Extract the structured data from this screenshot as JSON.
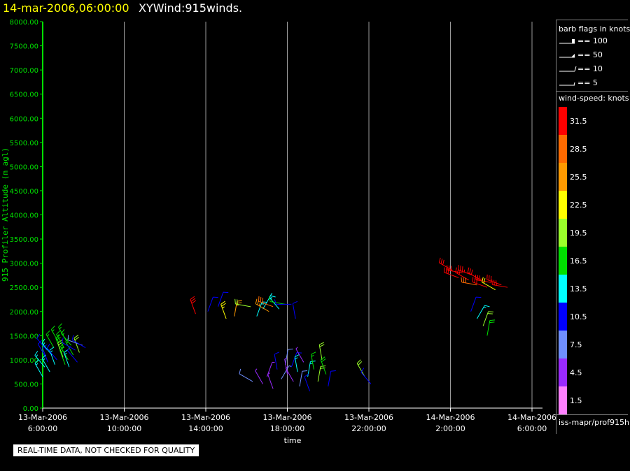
{
  "header": {
    "datetime": "14-mar-2006,06:00:00",
    "title": "XYWind:915winds."
  },
  "legend": {
    "barb_title": "barb flags in knots",
    "barbs": [
      {
        "label": "== 100"
      },
      {
        "label": "== 50"
      },
      {
        "label": "== 10"
      },
      {
        "label": "== 5"
      }
    ],
    "speed_title": "wind-speed: knots",
    "speed_bins": [
      {
        "label": "31.5",
        "color": "#ff0000"
      },
      {
        "label": "28.5",
        "color": "#ff6a00"
      },
      {
        "label": "25.5",
        "color": "#ff9a00"
      },
      {
        "label": "22.5",
        "color": "#ffff00"
      },
      {
        "label": "19.5",
        "color": "#9aff2a"
      },
      {
        "label": "16.5",
        "color": "#00e000"
      },
      {
        "label": "13.5",
        "color": "#00ffff"
      },
      {
        "label": "10.5",
        "color": "#0000ff"
      },
      {
        "label": "7.5",
        "color": "#6f8fff"
      },
      {
        "label": "4.5",
        "color": "#9a2aff"
      },
      {
        "label": "1.5",
        "color": "#ff80ff"
      }
    ],
    "source": "iss-mapr/prof915h"
  },
  "footer": {
    "quality_note": "REAL-TIME DATA, NOT CHECKED FOR QUALITY"
  },
  "chart_data": {
    "type": "scatter",
    "title": "XYWind:915winds.",
    "xlabel": "time",
    "ylabel": "915 Profiler Altitude (m agl)",
    "ylim": [
      0,
      8000
    ],
    "xlim": [
      "13-Mar-2006 6:00:00",
      "14-Mar-2006 6:00:00"
    ],
    "y_ticks": [
      "0.00",
      "500.00",
      "1000.00",
      "1500.00",
      "2000.00",
      "2500.00",
      "3000.00",
      "3500.00",
      "4000.00",
      "4500.00",
      "5000.00",
      "5500.00",
      "6000.00",
      "6500.00",
      "7000.00",
      "7500.00",
      "8000.00"
    ],
    "x_ticks": [
      {
        "date": "13-Mar-2006",
        "time": "6:00:00"
      },
      {
        "date": "13-Mar-2006",
        "time": "10:00:00"
      },
      {
        "date": "13-Mar-2006",
        "time": "14:00:00"
      },
      {
        "date": "13-Mar-2006",
        "time": "18:00:00"
      },
      {
        "date": "13-Mar-2006",
        "time": "22:00:00"
      },
      {
        "date": "14-Mar-2006",
        "time": "2:00:00"
      },
      {
        "date": "14-Mar-2006",
        "time": "6:00:00"
      }
    ],
    "vertical_grid": true,
    "series_note_units": {
      "x": "hours after 13-Mar-2006 6:00:00",
      "y": "m agl",
      "speed": "knots",
      "dir": "degrees"
    },
    "barbs": [
      {
        "x": 0.0,
        "y": 650,
        "speed": 13,
        "dir": 330
      },
      {
        "x": 0.1,
        "y": 850,
        "speed": 13,
        "dir": 320
      },
      {
        "x": 0.15,
        "y": 1050,
        "speed": 12,
        "dir": 330
      },
      {
        "x": 0.2,
        "y": 1200,
        "speed": 10,
        "dir": 320
      },
      {
        "x": 0.25,
        "y": 950,
        "speed": 12,
        "dir": 340
      },
      {
        "x": 0.35,
        "y": 750,
        "speed": 14,
        "dir": 330
      },
      {
        "x": 0.45,
        "y": 1100,
        "speed": 13,
        "dir": 320
      },
      {
        "x": 0.55,
        "y": 1250,
        "speed": 16,
        "dir": 330
      },
      {
        "x": 0.6,
        "y": 900,
        "speed": 13,
        "dir": 340
      },
      {
        "x": 0.7,
        "y": 1000,
        "speed": 12,
        "dir": 320
      },
      {
        "x": 0.8,
        "y": 1350,
        "speed": 16,
        "dir": 330
      },
      {
        "x": 0.9,
        "y": 1150,
        "speed": 18,
        "dir": 340
      },
      {
        "x": 1.0,
        "y": 1050,
        "speed": 19,
        "dir": 340
      },
      {
        "x": 1.05,
        "y": 1250,
        "speed": 17,
        "dir": 330
      },
      {
        "x": 1.1,
        "y": 900,
        "speed": 17,
        "dir": 340
      },
      {
        "x": 1.15,
        "y": 1400,
        "speed": 16,
        "dir": 330
      },
      {
        "x": 1.25,
        "y": 1000,
        "speed": 17,
        "dir": 330
      },
      {
        "x": 1.3,
        "y": 850,
        "speed": 14,
        "dir": 340
      },
      {
        "x": 1.4,
        "y": 1300,
        "speed": 16,
        "dir": 320
      },
      {
        "x": 1.5,
        "y": 1100,
        "speed": 17,
        "dir": 330
      },
      {
        "x": 1.6,
        "y": 1200,
        "speed": 10,
        "dir": 300
      },
      {
        "x": 1.7,
        "y": 950,
        "speed": 12,
        "dir": 320
      },
      {
        "x": 1.8,
        "y": 1150,
        "speed": 19,
        "dir": 340
      },
      {
        "x": 1.95,
        "y": 1300,
        "speed": 9,
        "dir": 290
      },
      {
        "x": 2.1,
        "y": 1250,
        "speed": 11,
        "dir": 300
      },
      {
        "x": 7.5,
        "y": 1950,
        "speed": 31,
        "dir": 340
      },
      {
        "x": 8.1,
        "y": 2000,
        "speed": 10,
        "dir": 20
      },
      {
        "x": 8.6,
        "y": 2100,
        "speed": 10,
        "dir": 20
      },
      {
        "x": 9.0,
        "y": 1850,
        "speed": 23,
        "dir": 340
      },
      {
        "x": 9.4,
        "y": 1900,
        "speed": 27,
        "dir": 10
      },
      {
        "x": 10.2,
        "y": 2100,
        "speed": 20,
        "dir": 280
      },
      {
        "x": 10.5,
        "y": 1900,
        "speed": 13,
        "dir": 20
      },
      {
        "x": 10.8,
        "y": 2050,
        "speed": 13,
        "dir": 30
      },
      {
        "x": 11.1,
        "y": 2000,
        "speed": 27,
        "dir": 300
      },
      {
        "x": 11.3,
        "y": 2100,
        "speed": 29,
        "dir": 290
      },
      {
        "x": 11.6,
        "y": 2050,
        "speed": 13,
        "dir": 320
      },
      {
        "x": 11.9,
        "y": 2150,
        "speed": 16,
        "dir": 280
      },
      {
        "x": 12.2,
        "y": 2150,
        "speed": 11,
        "dir": 270
      },
      {
        "x": 12.4,
        "y": 1850,
        "speed": 11,
        "dir": 350
      },
      {
        "x": 10.3,
        "y": 550,
        "speed": 8,
        "dir": 300
      },
      {
        "x": 10.8,
        "y": 500,
        "speed": 5,
        "dir": 330
      },
      {
        "x": 11.0,
        "y": 650,
        "speed": 6,
        "dir": 20
      },
      {
        "x": 11.3,
        "y": 400,
        "speed": 6,
        "dir": 340
      },
      {
        "x": 11.5,
        "y": 800,
        "speed": 10,
        "dir": 350
      },
      {
        "x": 11.7,
        "y": 600,
        "speed": 7,
        "dir": 30
      },
      {
        "x": 11.9,
        "y": 900,
        "speed": 8,
        "dir": 10
      },
      {
        "x": 12.0,
        "y": 700,
        "speed": 5,
        "dir": 350
      },
      {
        "x": 12.2,
        "y": 850,
        "speed": 12,
        "dir": 20
      },
      {
        "x": 12.3,
        "y": 550,
        "speed": 6,
        "dir": 330
      },
      {
        "x": 12.5,
        "y": 750,
        "speed": 14,
        "dir": 350
      },
      {
        "x": 12.6,
        "y": 450,
        "speed": 8,
        "dir": 10
      },
      {
        "x": 12.8,
        "y": 950,
        "speed": 5,
        "dir": 330
      },
      {
        "x": 13.0,
        "y": 650,
        "speed": 15,
        "dir": 10
      },
      {
        "x": 13.1,
        "y": 350,
        "speed": 12,
        "dir": 340
      },
      {
        "x": 13.3,
        "y": 800,
        "speed": 17,
        "dir": 350
      },
      {
        "x": 13.5,
        "y": 550,
        "speed": 19,
        "dir": 10
      },
      {
        "x": 13.7,
        "y": 1000,
        "speed": 21,
        "dir": 350
      },
      {
        "x": 13.9,
        "y": 700,
        "speed": 18,
        "dir": 340
      },
      {
        "x": 14.0,
        "y": 450,
        "speed": 10,
        "dir": 10
      },
      {
        "x": 15.8,
        "y": 650,
        "speed": 20,
        "dir": 330
      },
      {
        "x": 16.1,
        "y": 500,
        "speed": 11,
        "dir": 320
      },
      {
        "x": 20.1,
        "y": 2850,
        "speed": 32,
        "dir": 300
      },
      {
        "x": 20.4,
        "y": 2700,
        "speed": 32,
        "dir": 290
      },
      {
        "x": 20.6,
        "y": 2800,
        "speed": 31,
        "dir": 280
      },
      {
        "x": 20.9,
        "y": 2650,
        "speed": 32,
        "dir": 300
      },
      {
        "x": 21.1,
        "y": 2750,
        "speed": 33,
        "dir": 290
      },
      {
        "x": 21.3,
        "y": 2550,
        "speed": 29,
        "dir": 280
      },
      {
        "x": 21.5,
        "y": 2650,
        "speed": 32,
        "dir": 300
      },
      {
        "x": 21.8,
        "y": 2500,
        "speed": 31,
        "dir": 290
      },
      {
        "x": 22.0,
        "y": 2600,
        "speed": 33,
        "dir": 280
      },
      {
        "x": 22.2,
        "y": 2450,
        "speed": 22,
        "dir": 300
      },
      {
        "x": 22.5,
        "y": 2550,
        "speed": 32,
        "dir": 290
      },
      {
        "x": 22.8,
        "y": 2500,
        "speed": 31,
        "dir": 280
      },
      {
        "x": 21.0,
        "y": 2000,
        "speed": 10,
        "dir": 20
      },
      {
        "x": 21.3,
        "y": 1850,
        "speed": 13,
        "dir": 30
      },
      {
        "x": 21.6,
        "y": 1700,
        "speed": 20,
        "dir": 20
      },
      {
        "x": 21.8,
        "y": 1500,
        "speed": 18,
        "dir": 10
      }
    ]
  }
}
